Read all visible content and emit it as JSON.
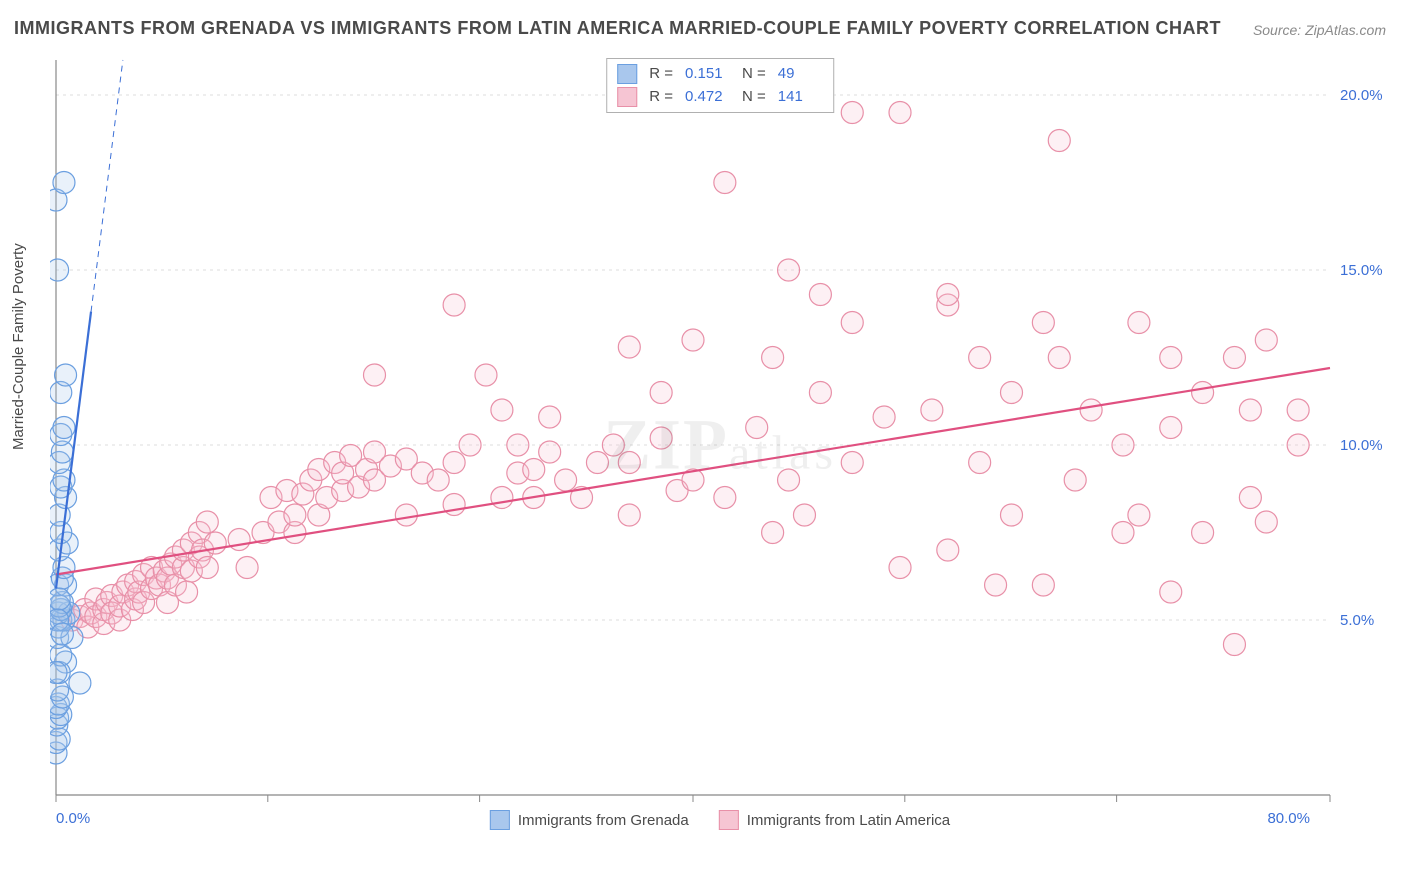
{
  "title": "IMMIGRANTS FROM GRENADA VS IMMIGRANTS FROM LATIN AMERICA MARRIED-COUPLE FAMILY POVERTY CORRELATION CHART",
  "source": "Source: ZipAtlas.com",
  "ylabel": "Married-Couple Family Poverty",
  "watermark_big": "ZIP",
  "watermark_small": "atlas",
  "chart": {
    "type": "scatter",
    "background_color": "#ffffff",
    "grid_color": "#dcdcdc",
    "axis_color": "#888888",
    "tick_label_color": "#3b6fd6",
    "xlim": [
      0,
      80
    ],
    "ylim": [
      0,
      21
    ],
    "xtick_positions": [
      0,
      13.3,
      26.6,
      40,
      53.3,
      66.6,
      80
    ],
    "xtick_labels": [
      "0.0%",
      "",
      "",
      "",
      "",
      "",
      "80.0%"
    ],
    "ytick_positions": [
      5,
      10,
      15,
      20
    ],
    "ytick_labels": [
      "5.0%",
      "10.0%",
      "15.0%",
      "20.0%"
    ],
    "marker_radius": 11,
    "marker_stroke_width": 1.2,
    "marker_fill_opacity": 0.25,
    "trend_line_width_solid": 2.2,
    "trend_line_width_dashed": 1,
    "trend_dash": "6,5"
  },
  "series": [
    {
      "name": "Immigrants from Grenada",
      "color_stroke": "#6b9fe0",
      "color_fill": "#a9c7ed",
      "trend_color": "#3b6fd6",
      "R": "0.151",
      "N": "49",
      "trend_line": {
        "x1": 0,
        "y1": 5.9,
        "x2": 4.2,
        "y2": 21
      },
      "points": [
        [
          0.0,
          1.2
        ],
        [
          0.0,
          1.5
        ],
        [
          0.2,
          1.6
        ],
        [
          0.05,
          2.0
        ],
        [
          0.1,
          2.2
        ],
        [
          0.3,
          2.3
        ],
        [
          0.0,
          2.5
        ],
        [
          0.15,
          2.6
        ],
        [
          0.4,
          2.8
        ],
        [
          0.1,
          3.0
        ],
        [
          0.6,
          3.8
        ],
        [
          1.5,
          3.2
        ],
        [
          0.2,
          3.5
        ],
        [
          0.3,
          4.0
        ],
        [
          0.1,
          4.5
        ],
        [
          1.0,
          4.5
        ],
        [
          0.15,
          4.8
        ],
        [
          0.3,
          5.0
        ],
        [
          0.5,
          5.0
        ],
        [
          0.15,
          5.2
        ],
        [
          0.8,
          5.2
        ],
        [
          0.3,
          5.3
        ],
        [
          0.3,
          5.3
        ],
        [
          0.4,
          5.5
        ],
        [
          0.1,
          6.0
        ],
        [
          0.6,
          6.0
        ],
        [
          0.4,
          6.2
        ],
        [
          0.5,
          6.5
        ],
        [
          0.2,
          7.0
        ],
        [
          0.7,
          7.2
        ],
        [
          0.3,
          7.5
        ],
        [
          0.2,
          8.0
        ],
        [
          0.6,
          8.5
        ],
        [
          0.3,
          8.8
        ],
        [
          0.5,
          9.0
        ],
        [
          0.2,
          9.5
        ],
        [
          0.4,
          9.8
        ],
        [
          0.3,
          10.3
        ],
        [
          0.5,
          10.5
        ],
        [
          0.3,
          11.5
        ],
        [
          0.6,
          12.0
        ],
        [
          0.0,
          3.5
        ],
        [
          0.2,
          5.4
        ],
        [
          0.2,
          5.6
        ],
        [
          0.1,
          15.0
        ],
        [
          0.0,
          17.0
        ],
        [
          0.5,
          17.5
        ],
        [
          0.1,
          5.0
        ],
        [
          0.4,
          4.6
        ]
      ]
    },
    {
      "name": "Immigrants from Latin America",
      "color_stroke": "#e890a8",
      "color_fill": "#f6c5d3",
      "trend_color": "#e05080",
      "R": "0.472",
      "N": "141",
      "trend_line": {
        "x1": 0,
        "y1": 6.3,
        "x2": 80,
        "y2": 12.2
      },
      "points": [
        [
          1.0,
          5.0
        ],
        [
          1.5,
          5.1
        ],
        [
          1.8,
          5.3
        ],
        [
          2.0,
          4.8
        ],
        [
          2.2,
          5.2
        ],
        [
          2.5,
          5.1
        ],
        [
          2.5,
          5.6
        ],
        [
          3.0,
          4.9
        ],
        [
          3.0,
          5.3
        ],
        [
          3.2,
          5.5
        ],
        [
          3.5,
          5.7
        ],
        [
          3.5,
          5.2
        ],
        [
          4.0,
          5.0
        ],
        [
          4.0,
          5.4
        ],
        [
          4.2,
          5.8
        ],
        [
          4.5,
          6.0
        ],
        [
          4.8,
          5.3
        ],
        [
          5.0,
          5.6
        ],
        [
          5.0,
          6.1
        ],
        [
          5.2,
          5.8
        ],
        [
          5.5,
          5.5
        ],
        [
          5.5,
          6.3
        ],
        [
          6.0,
          5.9
        ],
        [
          6.0,
          6.5
        ],
        [
          6.3,
          6.2
        ],
        [
          6.5,
          6.0
        ],
        [
          6.8,
          6.4
        ],
        [
          7.0,
          5.5
        ],
        [
          7.0,
          6.2
        ],
        [
          7.2,
          6.6
        ],
        [
          7.5,
          6.8
        ],
        [
          7.5,
          6.0
        ],
        [
          8.0,
          6.5
        ],
        [
          8.0,
          7.0
        ],
        [
          8.2,
          5.8
        ],
        [
          8.5,
          6.4
        ],
        [
          8.5,
          7.2
        ],
        [
          9.0,
          6.8
        ],
        [
          9.0,
          7.5
        ],
        [
          9.2,
          7.0
        ],
        [
          9.5,
          6.5
        ],
        [
          9.5,
          7.8
        ],
        [
          10.0,
          7.2
        ],
        [
          11.5,
          7.3
        ],
        [
          12.0,
          6.5
        ],
        [
          13.0,
          7.5
        ],
        [
          13.5,
          8.5
        ],
        [
          14.0,
          7.8
        ],
        [
          14.5,
          8.7
        ],
        [
          15.0,
          7.5
        ],
        [
          15.0,
          8.0
        ],
        [
          15.5,
          8.6
        ],
        [
          16.0,
          9.0
        ],
        [
          16.5,
          8.0
        ],
        [
          16.5,
          9.3
        ],
        [
          17.0,
          8.5
        ],
        [
          17.5,
          9.5
        ],
        [
          18.0,
          8.7
        ],
        [
          18.0,
          9.2
        ],
        [
          18.5,
          9.7
        ],
        [
          19.0,
          8.8
        ],
        [
          19.5,
          9.3
        ],
        [
          20.0,
          9.0
        ],
        [
          20.0,
          9.8
        ],
        [
          21.0,
          9.4
        ],
        [
          22.0,
          8.0
        ],
        [
          22.0,
          9.6
        ],
        [
          23.0,
          9.2
        ],
        [
          24.0,
          9.0
        ],
        [
          25.0,
          8.3
        ],
        [
          25.0,
          9.5
        ],
        [
          26.0,
          10.0
        ],
        [
          27.0,
          12.0
        ],
        [
          28.0,
          8.5
        ],
        [
          28.0,
          11.0
        ],
        [
          29.0,
          9.2
        ],
        [
          29.0,
          10.0
        ],
        [
          20.0,
          12.0
        ],
        [
          25.0,
          14.0
        ],
        [
          30.0,
          8.5
        ],
        [
          30.0,
          9.3
        ],
        [
          31.0,
          9.8
        ],
        [
          32.0,
          9.0
        ],
        [
          33.0,
          8.5
        ],
        [
          34.0,
          9.5
        ],
        [
          35.0,
          10.0
        ],
        [
          36.0,
          8.0
        ],
        [
          36.0,
          9.5
        ],
        [
          38.0,
          10.2
        ],
        [
          38.0,
          11.5
        ],
        [
          39.0,
          8.7
        ],
        [
          40.0,
          9.0
        ],
        [
          40.0,
          13.0
        ],
        [
          42.0,
          8.5
        ],
        [
          42.0,
          17.5
        ],
        [
          44.0,
          10.5
        ],
        [
          45.0,
          12.5
        ],
        [
          46.0,
          9.0
        ],
        [
          46.0,
          15.0
        ],
        [
          47.0,
          8.0
        ],
        [
          48.0,
          11.5
        ],
        [
          48.0,
          14.3
        ],
        [
          50.0,
          9.5
        ],
        [
          50.0,
          19.5
        ],
        [
          52.0,
          10.8
        ],
        [
          53.0,
          6.5
        ],
        [
          53.0,
          19.5
        ],
        [
          55.0,
          11.0
        ],
        [
          56.0,
          14.0
        ],
        [
          56.0,
          7.0
        ],
        [
          56.0,
          14.3
        ],
        [
          58.0,
          9.5
        ],
        [
          58.0,
          12.5
        ],
        [
          60.0,
          8.0
        ],
        [
          60.0,
          11.5
        ],
        [
          62.0,
          6.0
        ],
        [
          62.0,
          13.5
        ],
        [
          63.0,
          12.5
        ],
        [
          63.0,
          18.7
        ],
        [
          64.0,
          9.0
        ],
        [
          65.0,
          11.0
        ],
        [
          67.0,
          7.5
        ],
        [
          67.0,
          10.0
        ],
        [
          68.0,
          8.0
        ],
        [
          68.0,
          13.5
        ],
        [
          70.0,
          5.8
        ],
        [
          70.0,
          10.5
        ],
        [
          70.0,
          12.5
        ],
        [
          72.0,
          7.5
        ],
        [
          72.0,
          11.5
        ],
        [
          59.0,
          6.0
        ],
        [
          74.0,
          12.5
        ],
        [
          75.0,
          8.5
        ],
        [
          75.0,
          11.0
        ],
        [
          76.0,
          7.8
        ],
        [
          76.0,
          13.0
        ],
        [
          78.0,
          10.0
        ],
        [
          78.0,
          11.0
        ],
        [
          74.0,
          4.3
        ],
        [
          45.0,
          7.5
        ],
        [
          50.0,
          13.5
        ],
        [
          36.0,
          12.8
        ],
        [
          31.0,
          10.8
        ]
      ]
    }
  ],
  "legend_top": {
    "R_label": "R  =",
    "N_label": "N  ="
  },
  "legend_bottom_label_1": "Immigrants from Grenada",
  "legend_bottom_label_2": "Immigrants from Latin America"
}
